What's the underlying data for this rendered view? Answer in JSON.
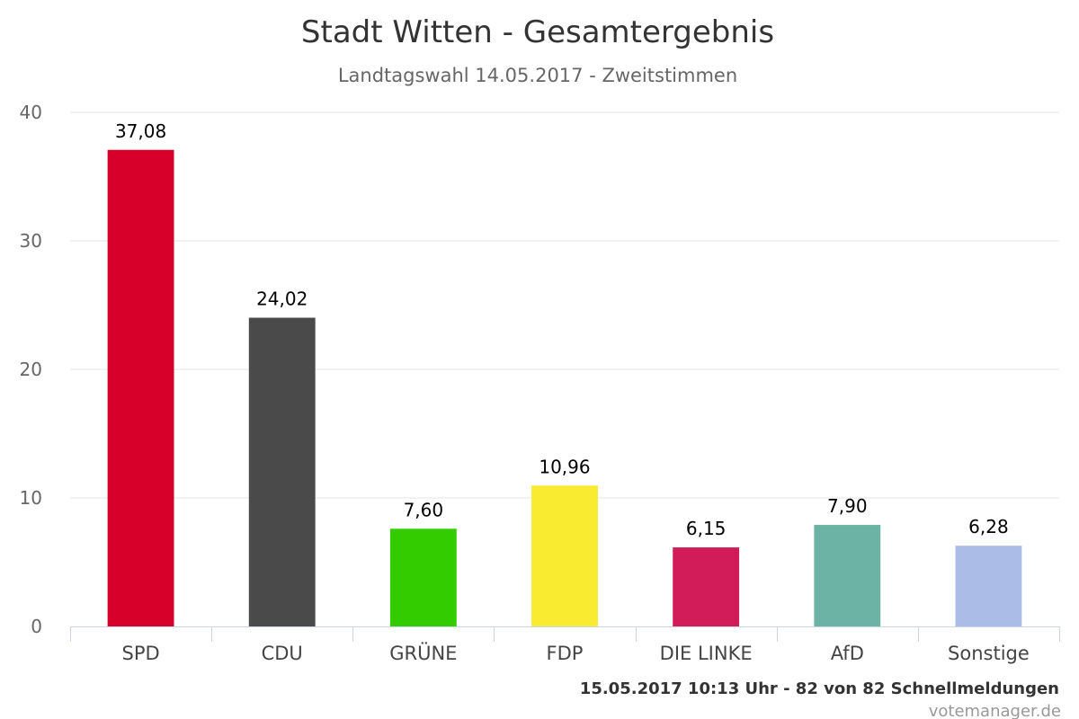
{
  "chart_data": {
    "type": "bar",
    "title": "Stadt Witten - Gesamtergebnis",
    "subtitle": "Landtagswahl 14.05.2017 - Zweitstimmen",
    "categories": [
      "SPD",
      "CDU",
      "GRÜNE",
      "FDP",
      "DIE LINKE",
      "AfD",
      "Sonstige"
    ],
    "values": [
      37.08,
      24.02,
      7.6,
      10.96,
      6.15,
      7.9,
      6.28
    ],
    "value_labels": [
      "37,08",
      "24,02",
      "7,60",
      "10,96",
      "6,15",
      "7,90",
      "6,28"
    ],
    "colors": [
      "#d7002a",
      "#4a4a4a",
      "#33cc00",
      "#f9ec30",
      "#d21c5a",
      "#6db3a5",
      "#abbde6"
    ],
    "ylim": [
      0,
      40
    ],
    "yticks": [
      "0",
      "10",
      "20",
      "30",
      "40"
    ],
    "grid": true,
    "legend": "none"
  },
  "footer": {
    "status": "15.05.2017 10:13 Uhr - 82 von 82 Schnellmeldungen",
    "credit": "votemanager.de"
  }
}
